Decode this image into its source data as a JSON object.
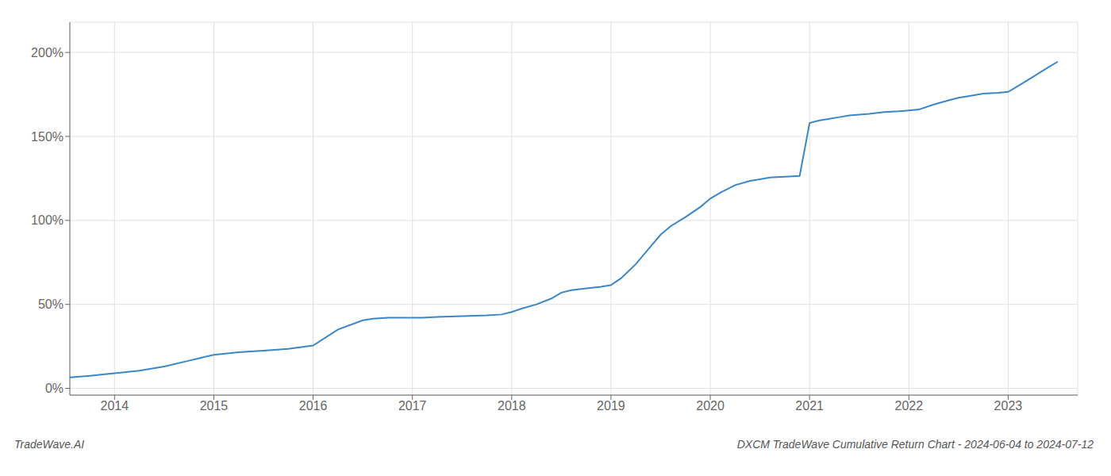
{
  "chart_data": {
    "type": "line",
    "title": "DXCM TradeWave Cumulative Return Chart - 2024-06-04 to 2024-07-12",
    "annotations": [
      "TradeWave.AI"
    ],
    "x": [
      2013.55,
      2013.75,
      2013.92,
      2014.0,
      2014.25,
      2014.5,
      2014.75,
      2015.0,
      2015.25,
      2015.5,
      2015.75,
      2016.0,
      2016.25,
      2016.5,
      2016.6,
      2016.75,
      2017.0,
      2017.1,
      2017.25,
      2017.5,
      2017.75,
      2017.9,
      2018.0,
      2018.1,
      2018.25,
      2018.4,
      2018.5,
      2018.6,
      2018.75,
      2018.9,
      2019.0,
      2019.1,
      2019.25,
      2019.4,
      2019.5,
      2019.6,
      2019.75,
      2019.9,
      2020.0,
      2020.1,
      2020.25,
      2020.4,
      2020.5,
      2020.6,
      2020.75,
      2020.9,
      2021.0,
      2021.1,
      2021.2,
      2021.3,
      2021.4,
      2021.5,
      2021.6,
      2021.75,
      2021.9,
      2022.0,
      2022.1,
      2022.25,
      2022.4,
      2022.5,
      2022.6,
      2022.75,
      2022.9,
      2023.0,
      2023.1,
      2023.25,
      2023.4,
      2023.5
    ],
    "values": [
      0.065,
      0.075,
      0.085,
      0.09,
      0.105,
      0.13,
      0.165,
      0.2,
      0.215,
      0.225,
      0.235,
      0.255,
      0.35,
      0.405,
      0.415,
      0.42,
      0.42,
      0.42,
      0.425,
      0.43,
      0.435,
      0.44,
      0.455,
      0.475,
      0.5,
      0.535,
      0.57,
      0.585,
      0.595,
      0.605,
      0.615,
      0.655,
      0.74,
      0.845,
      0.915,
      0.965,
      1.02,
      1.08,
      1.13,
      1.165,
      1.21,
      1.235,
      1.245,
      1.255,
      1.26,
      1.265,
      1.58,
      1.595,
      1.605,
      1.615,
      1.625,
      1.63,
      1.635,
      1.645,
      1.65,
      1.655,
      1.66,
      1.69,
      1.715,
      1.73,
      1.74,
      1.755,
      1.76,
      1.765,
      1.8,
      1.855,
      1.91,
      1.945
    ],
    "color": "#3a86c8",
    "xlim": [
      2013.55,
      2023.7
    ],
    "xticks": [
      2014,
      2015,
      2016,
      2017,
      2018,
      2019,
      2020,
      2021,
      2022,
      2023
    ],
    "ylim": [
      -0.04,
      2.18
    ],
    "yticks": [
      {
        "value": 0.0,
        "label": "0%"
      },
      {
        "value": 0.5,
        "label": "50%"
      },
      {
        "value": 1.0,
        "label": "100%"
      },
      {
        "value": 1.5,
        "label": "150%"
      },
      {
        "value": 2.0,
        "label": "200%"
      }
    ],
    "grid": true
  }
}
